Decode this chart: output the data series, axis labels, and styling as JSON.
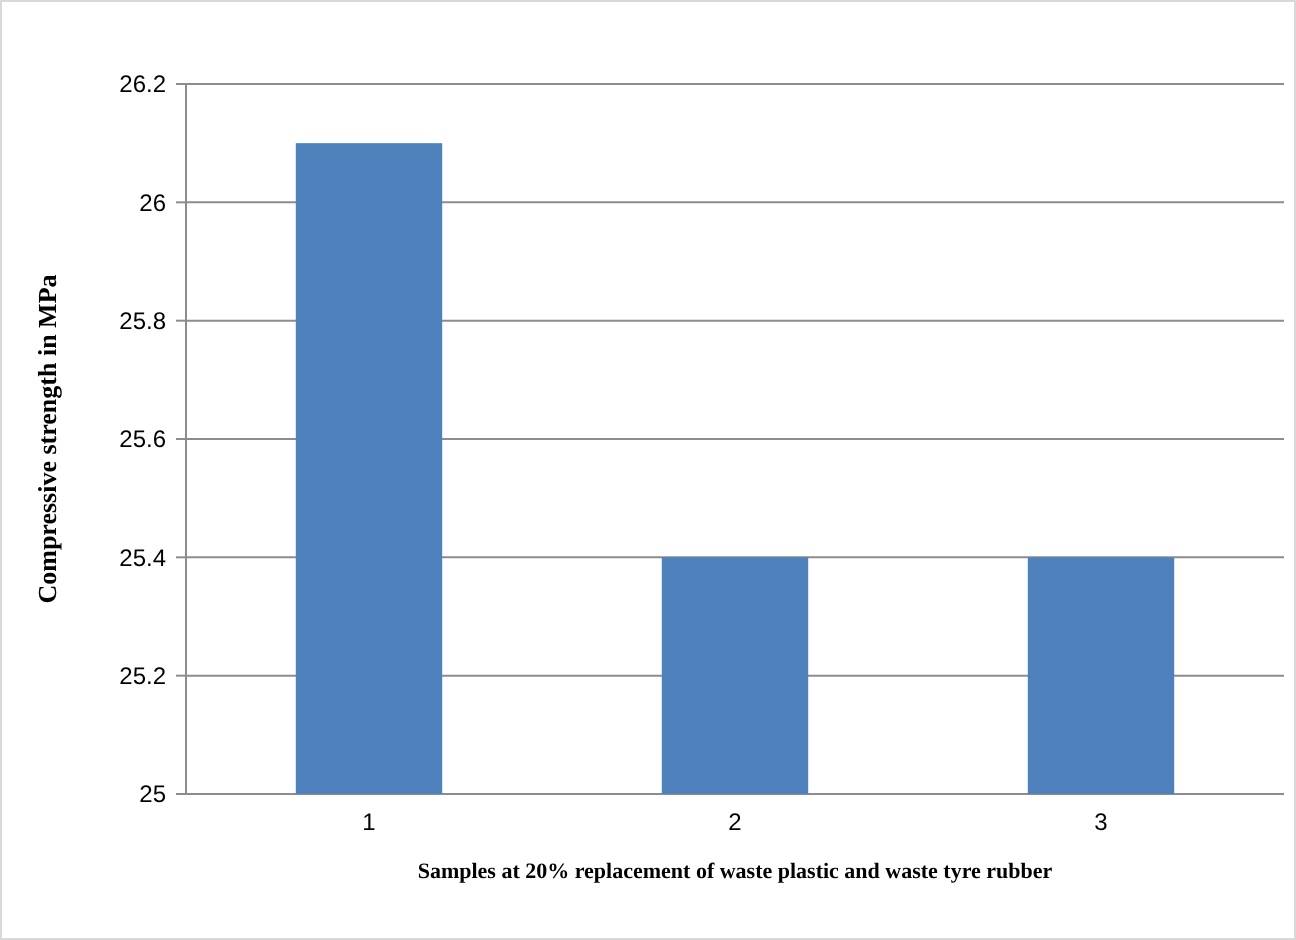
{
  "chart_data": {
    "type": "bar",
    "xlabel": "Samples at 20% replacement of waste plastic and waste tyre rubber",
    "ylabel": "Compressive strength in MPa",
    "categories": [
      "1",
      "2",
      "3"
    ],
    "values": [
      26.1,
      25.4,
      25.4
    ],
    "color": "#4f81bd",
    "ylim": [
      25,
      26.2
    ],
    "yticks": [
      25,
      {
        "value": 25.2,
        "label": "25.2"
      },
      {
        "value": 25.4,
        "label": "25.4"
      },
      {
        "value": 25.6,
        "label": "25.6"
      },
      {
        "value": 25.8,
        "label": "25.8"
      },
      26,
      {
        "value": 26.2,
        "label": "26.2"
      }
    ],
    "grid": "y"
  }
}
